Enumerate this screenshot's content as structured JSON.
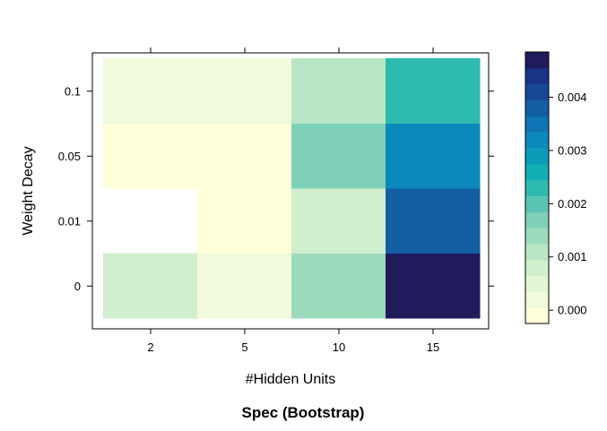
{
  "chart_data": {
    "type": "heatmap",
    "title": "Spec (Bootstrap)",
    "xlabel": "#Hidden Units",
    "ylabel": "Weight Decay",
    "x_categories": [
      "2",
      "5",
      "10",
      "15"
    ],
    "y_categories": [
      "0",
      "0.01",
      "0.05",
      "0.1"
    ],
    "values": [
      [
        0.0008,
        5e-05,
        0.0015,
        0.0049
      ],
      [
        null,
        0.0,
        0.0009,
        0.0037
      ],
      [
        0.0,
        0.0,
        0.0017,
        0.0031
      ],
      [
        0.0002,
        0.0002,
        0.0012,
        0.0024
      ]
    ],
    "colorbar": {
      "ticks": [
        0.0,
        0.001,
        0.002,
        0.003,
        0.004
      ],
      "tick_labels": [
        "0.000",
        "0.001",
        "0.002",
        "0.003",
        "0.004"
      ],
      "range": [
        -0.00025,
        0.00485
      ],
      "colors": [
        "#ffffd9",
        "#f1fadb",
        "#e3f5d5",
        "#d0efcd",
        "#b8e6c5",
        "#9ddbbd",
        "#7fd0b8",
        "#5ac5b4",
        "#2fbaaf",
        "#12aeb4",
        "#0b9cb9",
        "#0c89bc",
        "#0f74b3",
        "#145ea4",
        "#164896",
        "#183487",
        "#201b5b"
      ]
    },
    "grid": false,
    "legend": "right"
  }
}
